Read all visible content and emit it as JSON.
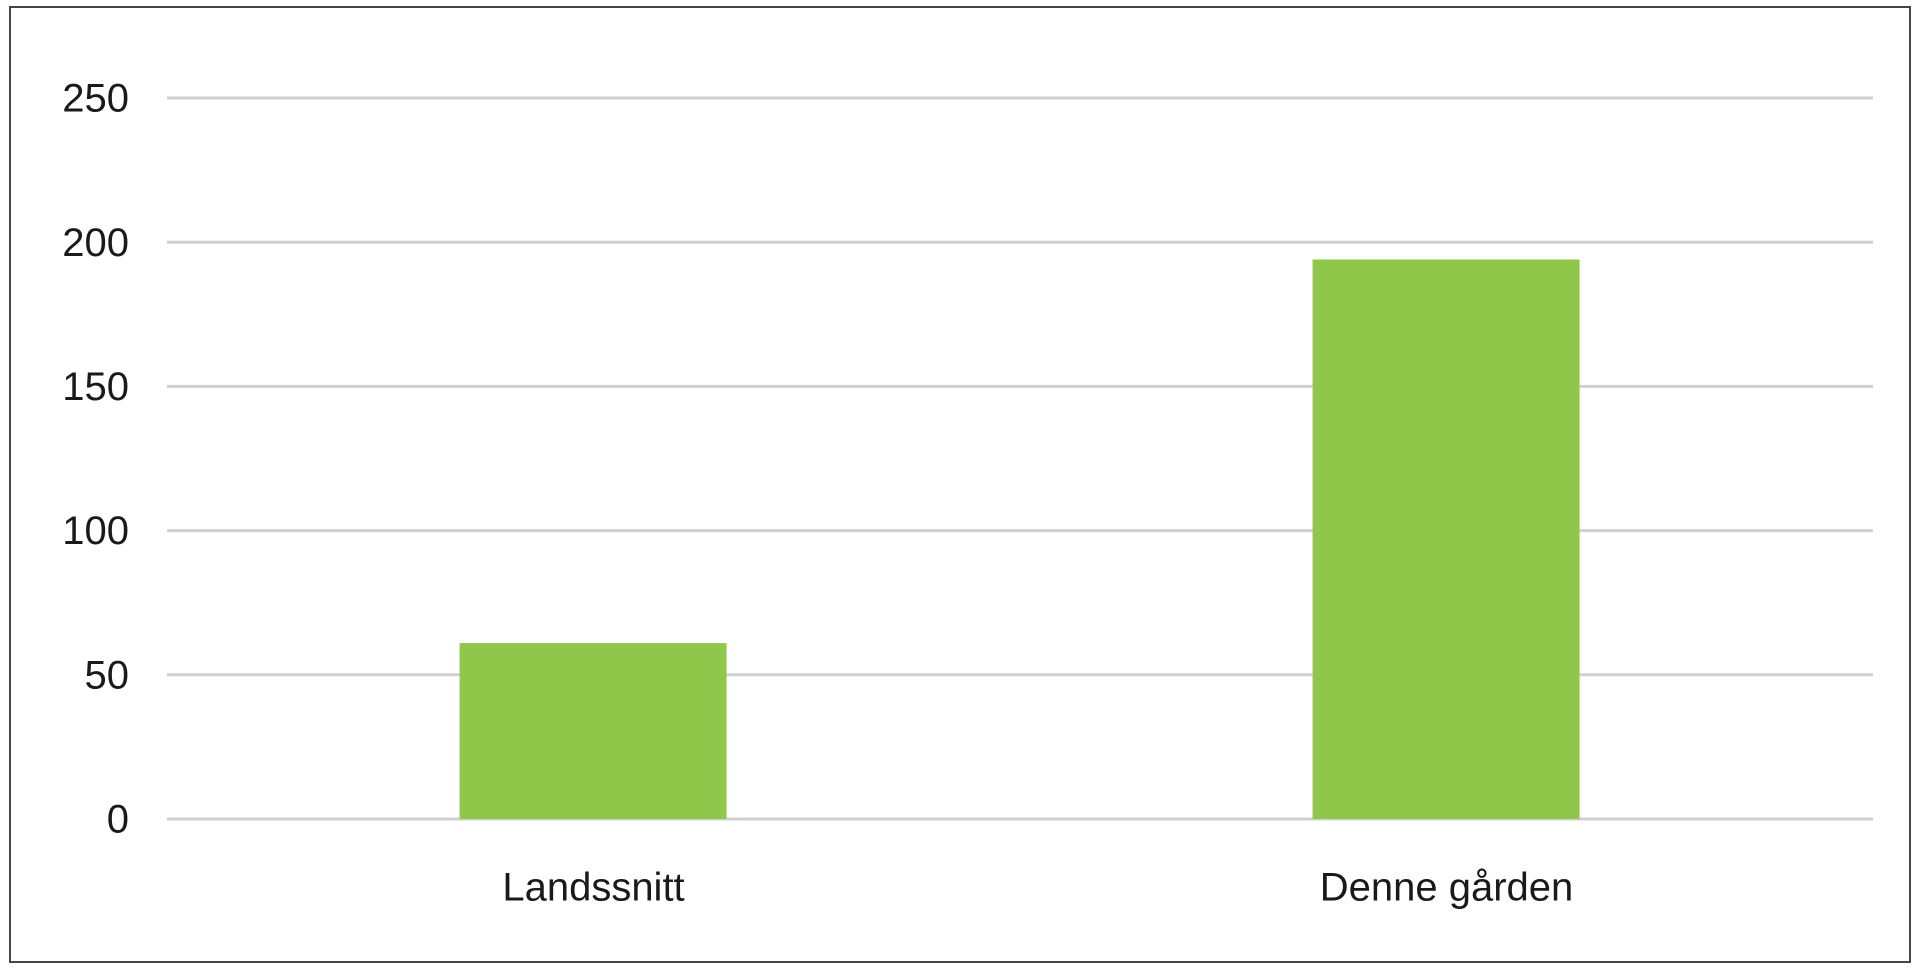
{
  "chart_data": {
    "type": "bar",
    "categories": [
      "Landssnitt",
      "Denne gården"
    ],
    "values": [
      61,
      194
    ],
    "color": "#8fc74a",
    "ylim": [
      0,
      250
    ],
    "yticks": [
      0,
      50,
      100,
      150,
      200,
      250
    ],
    "grid": true
  }
}
